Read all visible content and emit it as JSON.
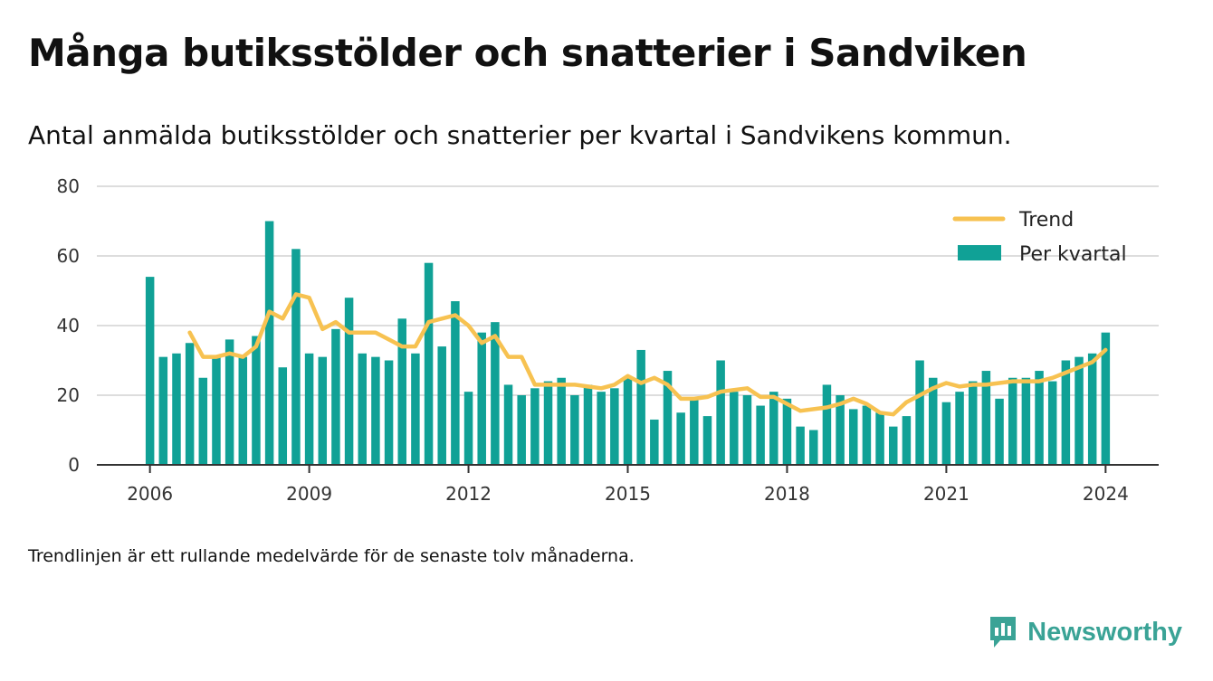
{
  "title": "Många butiksstölder och snatterier i Sandviken",
  "subtitle": "Antal anmälda butiksstölder och snatterier per kvartal i Sandvikens kommun.",
  "note": "Trendlinjen är ett rullande medelvärde för de senaste tolv månaderna.",
  "brand": {
    "name": "Newsworthy",
    "icon": "newsworthy-logo-icon"
  },
  "colors": {
    "bars": "#10a196",
    "trend": "#f7c251",
    "grid": "#dddddd",
    "axis": "#333333",
    "brand": "#3aa396"
  },
  "chart_data": {
    "type": "bar",
    "title": "",
    "xlabel": "",
    "ylabel": "",
    "ylim": [
      0,
      80
    ],
    "yticks": [
      0,
      20,
      40,
      60,
      80
    ],
    "xticks": [
      "2006",
      "2009",
      "2012",
      "2015",
      "2018",
      "2021",
      "2024"
    ],
    "xrange": [
      2005.0,
      2025.0
    ],
    "grid": true,
    "legend_position": "top-right",
    "x": [
      2006.0,
      2006.25,
      2006.5,
      2006.75,
      2007.0,
      2007.25,
      2007.5,
      2007.75,
      2008.0,
      2008.25,
      2008.5,
      2008.75,
      2009.0,
      2009.25,
      2009.5,
      2009.75,
      2010.0,
      2010.25,
      2010.5,
      2010.75,
      2011.0,
      2011.25,
      2011.5,
      2011.75,
      2012.0,
      2012.25,
      2012.5,
      2012.75,
      2013.0,
      2013.25,
      2013.5,
      2013.75,
      2014.0,
      2014.25,
      2014.5,
      2014.75,
      2015.0,
      2015.25,
      2015.5,
      2015.75,
      2016.0,
      2016.25,
      2016.5,
      2016.75,
      2017.0,
      2017.25,
      2017.5,
      2017.75,
      2018.0,
      2018.25,
      2018.5,
      2018.75,
      2019.0,
      2019.25,
      2019.5,
      2019.75,
      2020.0,
      2020.25,
      2020.5,
      2020.75,
      2021.0,
      2021.25,
      2021.5,
      2021.75,
      2022.0,
      2022.25,
      2022.5,
      2022.75,
      2023.0,
      2023.25,
      2023.5,
      2023.75,
      2024.0
    ],
    "series": [
      {
        "name": "Per kvartal",
        "kind": "bar",
        "values": [
          54,
          31,
          32,
          35,
          25,
          31,
          36,
          31,
          37,
          70,
          28,
          62,
          32,
          31,
          39,
          48,
          32,
          31,
          30,
          42,
          32,
          58,
          34,
          47,
          21,
          38,
          41,
          23,
          20,
          22,
          24,
          25,
          20,
          23,
          21,
          22,
          25,
          33,
          13,
          27,
          15,
          19,
          14,
          30,
          21,
          20,
          17,
          21,
          19,
          11,
          10,
          23,
          20,
          16,
          17,
          15,
          11,
          14,
          30,
          25,
          18,
          21,
          24,
          27,
          19,
          25,
          25,
          27,
          24,
          30,
          31,
          32,
          38
        ]
      },
      {
        "name": "Trend",
        "kind": "line",
        "x": [
          2006.75,
          2007.0,
          2007.25,
          2007.5,
          2007.75,
          2008.0,
          2008.25,
          2008.5,
          2008.75,
          2009.0,
          2009.25,
          2009.5,
          2009.75,
          2010.0,
          2010.25,
          2010.5,
          2010.75,
          2011.0,
          2011.25,
          2011.5,
          2011.75,
          2012.0,
          2012.25,
          2012.5,
          2012.75,
          2013.0,
          2013.25,
          2013.5,
          2013.75,
          2014.0,
          2014.25,
          2014.5,
          2014.75,
          2015.0,
          2015.25,
          2015.5,
          2015.75,
          2016.0,
          2016.25,
          2016.5,
          2016.75,
          2017.0,
          2017.25,
          2017.5,
          2017.75,
          2018.0,
          2018.25,
          2018.5,
          2018.75,
          2019.0,
          2019.25,
          2019.5,
          2019.75,
          2020.0,
          2020.25,
          2020.5,
          2020.75,
          2021.0,
          2021.25,
          2021.5,
          2021.75,
          2022.0,
          2022.25,
          2022.5,
          2022.75,
          2023.0,
          2023.25,
          2023.5,
          2023.75,
          2024.0
        ],
        "values": [
          38,
          31,
          31,
          32,
          31,
          34,
          44,
          42,
          49,
          48,
          39,
          41,
          38,
          38,
          38,
          36,
          34,
          34,
          41,
          42,
          43,
          40,
          35,
          37,
          31,
          31,
          23,
          23,
          23,
          23,
          22.5,
          22,
          23,
          25.5,
          23.5,
          25,
          23,
          19,
          19,
          19.5,
          21,
          21.5,
          22,
          19.5,
          19.5,
          17.5,
          15.5,
          16,
          16.5,
          17.5,
          19,
          17.5,
          15,
          14.5,
          18,
          20,
          22,
          23.5,
          22.5,
          23,
          23,
          23.5,
          24,
          24,
          24,
          25,
          26.5,
          28,
          29.5,
          33
        ]
      }
    ]
  }
}
